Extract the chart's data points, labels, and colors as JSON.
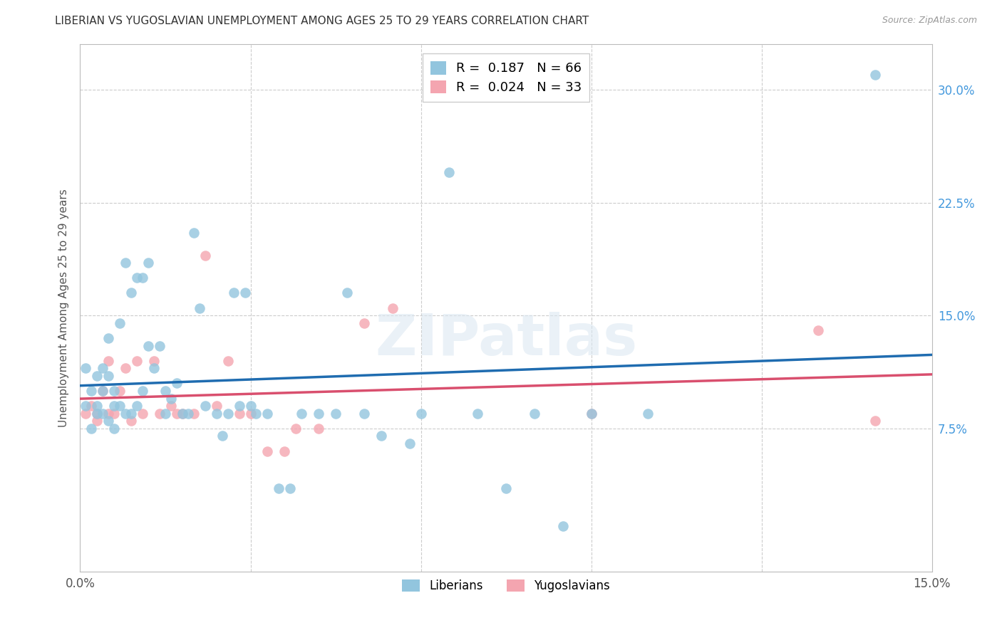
{
  "title": "LIBERIAN VS YUGOSLAVIAN UNEMPLOYMENT AMONG AGES 25 TO 29 YEARS CORRELATION CHART",
  "source": "Source: ZipAtlas.com",
  "ylabel": "Unemployment Among Ages 25 to 29 years",
  "xlim": [
    0.0,
    0.15
  ],
  "ylim": [
    -0.02,
    0.33
  ],
  "xticks": [
    0.0,
    0.03,
    0.06,
    0.09,
    0.12,
    0.15
  ],
  "xtick_labels": [
    "0.0%",
    "",
    "",
    "",
    "",
    "15.0%"
  ],
  "yticks": [
    0.0,
    0.075,
    0.15,
    0.225,
    0.3
  ],
  "ytick_labels": [
    "",
    "7.5%",
    "15.0%",
    "22.5%",
    "30.0%"
  ],
  "liberian_R": 0.187,
  "liberian_N": 66,
  "yugoslavian_R": 0.024,
  "yugoslavian_N": 33,
  "liberian_color": "#92c5de",
  "yugoslavian_color": "#f4a5b0",
  "liberian_line_color": "#1f6cb0",
  "yugoslavian_line_color": "#d94f6e",
  "watermark": "ZIPatlas",
  "liberian_x": [
    0.001,
    0.001,
    0.002,
    0.002,
    0.003,
    0.003,
    0.003,
    0.004,
    0.004,
    0.004,
    0.005,
    0.005,
    0.005,
    0.006,
    0.006,
    0.006,
    0.007,
    0.007,
    0.008,
    0.008,
    0.009,
    0.009,
    0.01,
    0.01,
    0.011,
    0.011,
    0.012,
    0.012,
    0.013,
    0.014,
    0.015,
    0.015,
    0.016,
    0.017,
    0.018,
    0.019,
    0.02,
    0.021,
    0.022,
    0.024,
    0.025,
    0.026,
    0.027,
    0.028,
    0.029,
    0.03,
    0.031,
    0.033,
    0.035,
    0.037,
    0.039,
    0.042,
    0.045,
    0.047,
    0.05,
    0.053,
    0.058,
    0.06,
    0.065,
    0.07,
    0.075,
    0.08,
    0.085,
    0.09,
    0.1,
    0.14
  ],
  "liberian_y": [
    0.115,
    0.09,
    0.1,
    0.075,
    0.11,
    0.09,
    0.085,
    0.115,
    0.1,
    0.085,
    0.135,
    0.11,
    0.08,
    0.1,
    0.09,
    0.075,
    0.145,
    0.09,
    0.185,
    0.085,
    0.165,
    0.085,
    0.175,
    0.09,
    0.175,
    0.1,
    0.185,
    0.13,
    0.115,
    0.13,
    0.1,
    0.085,
    0.095,
    0.105,
    0.085,
    0.085,
    0.205,
    0.155,
    0.09,
    0.085,
    0.07,
    0.085,
    0.165,
    0.09,
    0.165,
    0.09,
    0.085,
    0.085,
    0.035,
    0.035,
    0.085,
    0.085,
    0.085,
    0.165,
    0.085,
    0.07,
    0.065,
    0.085,
    0.245,
    0.085,
    0.035,
    0.085,
    0.01,
    0.085,
    0.085,
    0.31
  ],
  "yugoslavian_x": [
    0.001,
    0.002,
    0.003,
    0.003,
    0.004,
    0.005,
    0.005,
    0.006,
    0.007,
    0.008,
    0.009,
    0.01,
    0.011,
    0.013,
    0.014,
    0.016,
    0.017,
    0.018,
    0.02,
    0.022,
    0.024,
    0.026,
    0.028,
    0.03,
    0.033,
    0.036,
    0.038,
    0.042,
    0.05,
    0.055,
    0.09,
    0.13,
    0.14
  ],
  "yugoslavian_y": [
    0.085,
    0.09,
    0.085,
    0.08,
    0.1,
    0.12,
    0.085,
    0.085,
    0.1,
    0.115,
    0.08,
    0.12,
    0.085,
    0.12,
    0.085,
    0.09,
    0.085,
    0.085,
    0.085,
    0.19,
    0.09,
    0.12,
    0.085,
    0.085,
    0.06,
    0.06,
    0.075,
    0.075,
    0.145,
    0.155,
    0.085,
    0.14,
    0.08
  ]
}
